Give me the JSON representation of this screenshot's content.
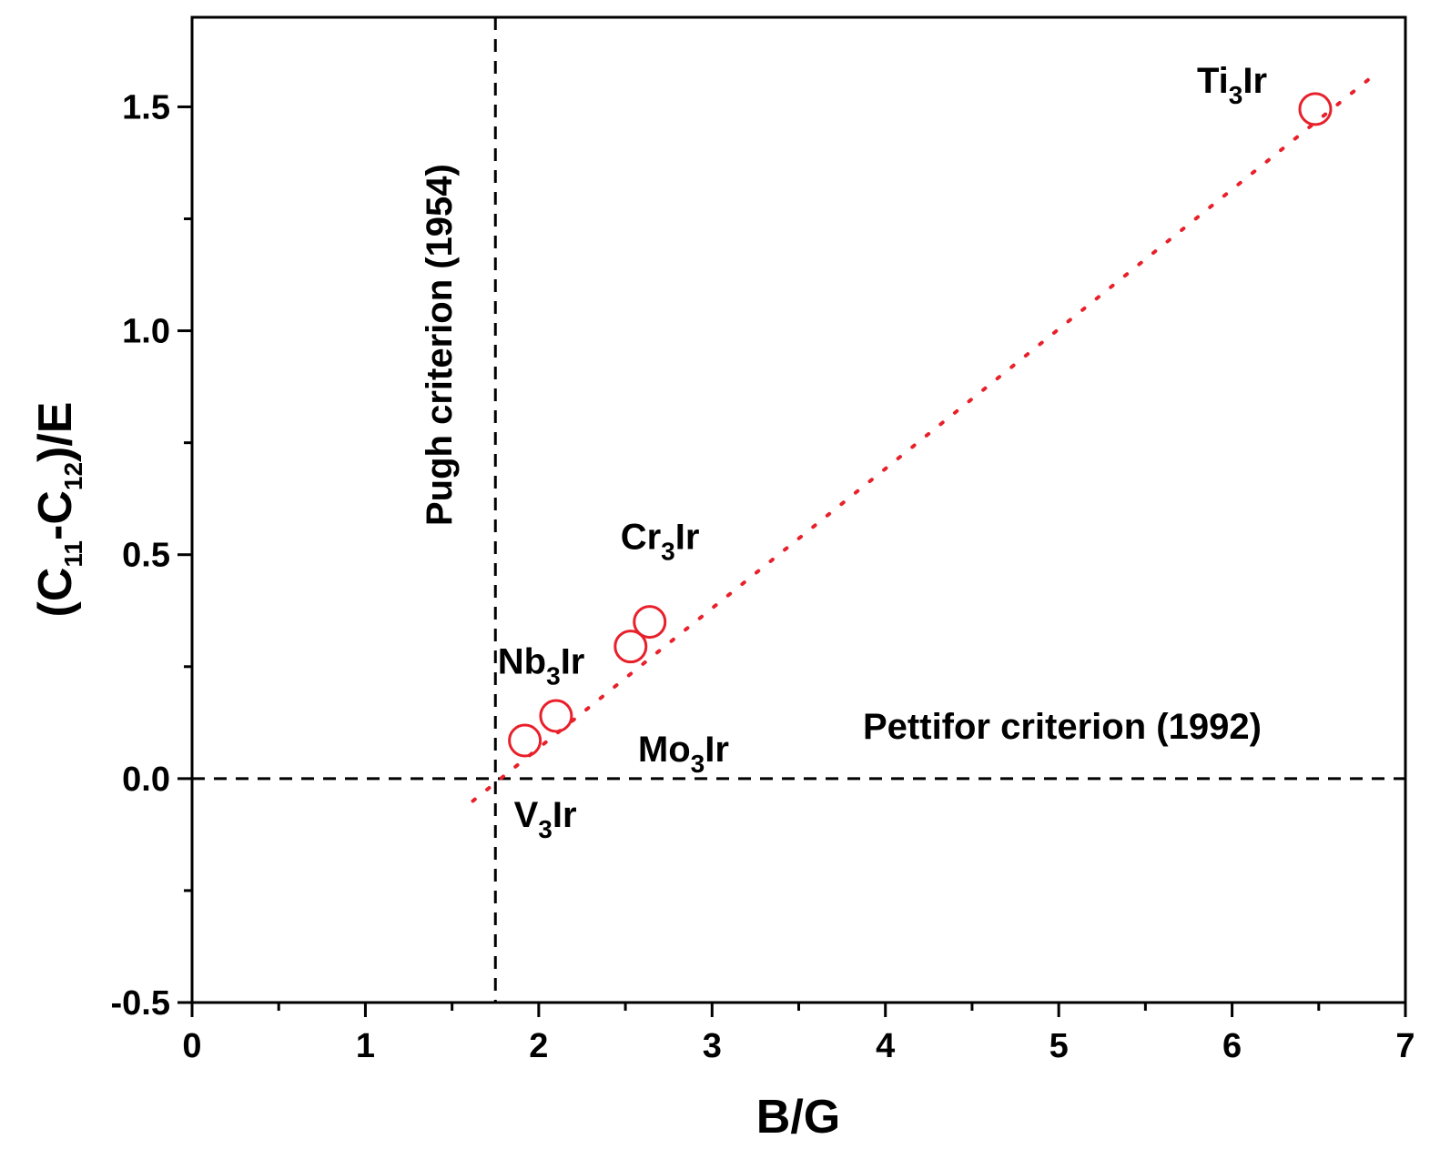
{
  "chart_data": {
    "type": "scatter",
    "xlabel": "B/G",
    "ylabel": {
      "prefix": "(C",
      "sub1": "11",
      "mid": "-C",
      "sub2": "12",
      "suffix": ")/E"
    },
    "xlim": [
      0,
      7
    ],
    "ylim": [
      -0.5,
      1.7
    ],
    "x_ticks": [
      "0",
      "1",
      "2",
      "3",
      "4",
      "5",
      "6",
      "7"
    ],
    "y_ticks": [
      "-0.5",
      "0.0",
      "0.5",
      "1.0",
      "1.5"
    ],
    "x_tick_values": [
      0,
      1,
      2,
      3,
      4,
      5,
      6,
      7
    ],
    "y_tick_values": [
      -0.5,
      0.0,
      0.5,
      1.0,
      1.5
    ],
    "marker_color": "#e8202a",
    "points": [
      {
        "name": "V3Ir",
        "label_main": "V",
        "label_sub": "3",
        "label_tail": "Ir",
        "x": 1.92,
        "y": 0.085
      },
      {
        "name": "Mo3Ir",
        "label_main": "Mo",
        "label_sub": "3",
        "label_tail": "Ir",
        "x": 2.1,
        "y": 0.14
      },
      {
        "name": "Nb3Ir",
        "label_main": "Nb",
        "label_sub": "3",
        "label_tail": "Ir",
        "x": 2.53,
        "y": 0.295
      },
      {
        "name": "Cr3Ir",
        "label_main": "Cr",
        "label_sub": "3",
        "label_tail": "Ir",
        "x": 2.64,
        "y": 0.35
      },
      {
        "name": "Ti3Ir",
        "label_main": "Ti",
        "label_sub": "3",
        "label_tail": "Ir",
        "x": 6.48,
        "y": 1.495
      }
    ],
    "fit_line": {
      "x_start": 1.62,
      "y_start": -0.05,
      "x_end": 6.8,
      "y_end": 1.565,
      "style": "dotted"
    },
    "reference_lines": [
      {
        "orientation": "vertical",
        "value": 1.75,
        "label": "Pugh criterion (1954)"
      },
      {
        "orientation": "horizontal",
        "value": 0.0,
        "label": "Pettifor criterion (1992)"
      }
    ]
  }
}
